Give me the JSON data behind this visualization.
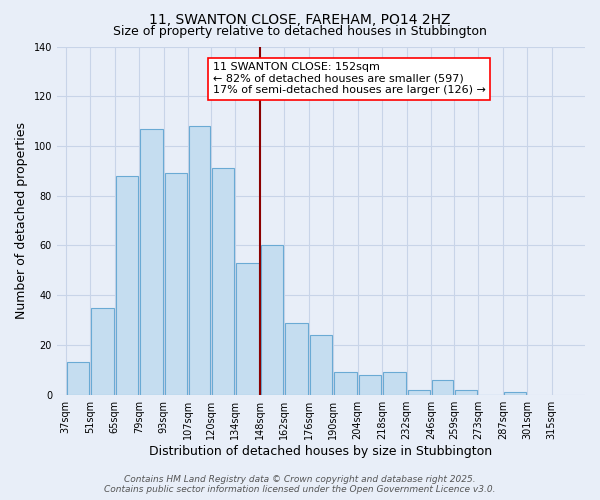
{
  "title_line1": "11, SWANTON CLOSE, FAREHAM, PO14 2HZ",
  "title_line2": "Size of property relative to detached houses in Stubbington",
  "bar_values": [
    13,
    35,
    88,
    107,
    89,
    108,
    91,
    53,
    60,
    29,
    24,
    9,
    8,
    9,
    2,
    6,
    2,
    0,
    1
  ],
  "bar_left_edges": [
    37,
    51,
    65,
    79,
    93,
    107,
    120,
    134,
    148,
    162,
    176,
    190,
    204,
    218,
    232,
    246,
    259,
    273,
    287
  ],
  "bar_widths": [
    14,
    14,
    14,
    14,
    14,
    13,
    14,
    14,
    14,
    14,
    14,
    14,
    14,
    14,
    14,
    13,
    14,
    14,
    14
  ],
  "xtick_labels": [
    "37sqm",
    "51sqm",
    "65sqm",
    "79sqm",
    "93sqm",
    "107sqm",
    "120sqm",
    "134sqm",
    "148sqm",
    "162sqm",
    "176sqm",
    "190sqm",
    "204sqm",
    "218sqm",
    "232sqm",
    "246sqm",
    "259sqm",
    "273sqm",
    "287sqm",
    "301sqm",
    "315sqm"
  ],
  "xtick_positions": [
    37,
    51,
    65,
    79,
    93,
    107,
    120,
    134,
    148,
    162,
    176,
    190,
    204,
    218,
    232,
    246,
    259,
    273,
    287,
    301,
    315
  ],
  "ylabel": "Number of detached properties",
  "xlabel": "Distribution of detached houses by size in Stubbington",
  "ylim": [
    0,
    140
  ],
  "yticks": [
    0,
    20,
    40,
    60,
    80,
    100,
    120,
    140
  ],
  "bar_color": "#c5ddf0",
  "bar_edgecolor": "#6aaad4",
  "red_line_x": 148,
  "annotation_title": "11 SWANTON CLOSE: 152sqm",
  "annotation_line2": "← 82% of detached houses are smaller (597)",
  "annotation_line3": "17% of semi-detached houses are larger (126) →",
  "footer_line1": "Contains HM Land Registry data © Crown copyright and database right 2025.",
  "footer_line2": "Contains public sector information licensed under the Open Government Licence v3.0.",
  "background_color": "#e8eef8",
  "grid_color": "#c8d4e8",
  "title_fontsize": 10,
  "subtitle_fontsize": 9,
  "axis_label_fontsize": 9,
  "tick_fontsize": 7,
  "annotation_fontsize": 8,
  "footer_fontsize": 6.5
}
